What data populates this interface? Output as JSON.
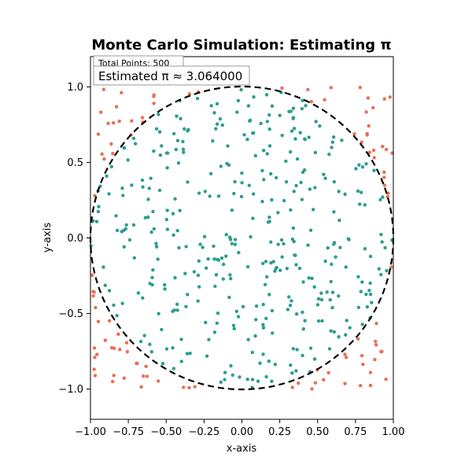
{
  "chart_data": {
    "type": "scatter",
    "title": "Monte Carlo Simulation: Estimating π",
    "xlabel": "x-axis",
    "ylabel": "y-axis",
    "xlim": [
      -1.0,
      1.0
    ],
    "ylim": [
      -1.2,
      1.2
    ],
    "xticks": [
      -1.0,
      -0.75,
      -0.5,
      -0.25,
      0.0,
      0.25,
      0.5,
      0.75,
      1.0
    ],
    "xtick_labels": [
      "−1.00",
      "−0.75",
      "−0.50",
      "−0.25",
      "0.00",
      "0.25",
      "0.50",
      "0.75",
      "1.00"
    ],
    "yticks": [
      -1.0,
      -0.5,
      0.0,
      0.5,
      1.0
    ],
    "ytick_labels": [
      "−1.0",
      "−0.5",
      "0.0",
      "0.5",
      "1.0"
    ],
    "grid": false,
    "annotations": {
      "total_points": "Total Points: 500",
      "estimate": "Estimated π ≈ 3.064000"
    },
    "circle": {
      "center": [
        0,
        0
      ],
      "radius": 1.0,
      "style": "dashed",
      "color": "#000000"
    },
    "colors": {
      "inside": "#2a9d8f",
      "outside": "#e76f51"
    },
    "total_points": 500,
    "estimated_pi": 3.064
  }
}
